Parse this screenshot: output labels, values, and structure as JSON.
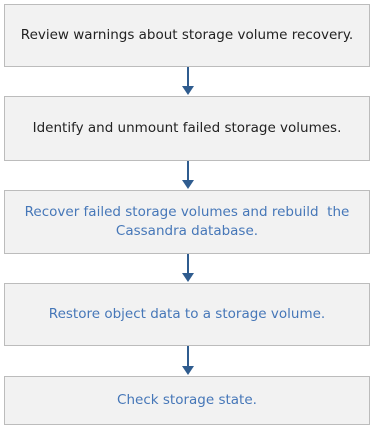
{
  "steps": [
    {
      "lines": [
        "Review warnings about storage volume recovery."
      ]
    },
    {
      "lines": [
        "Identify and unmount failed storage volumes."
      ]
    },
    {
      "lines": [
        "Recover failed storage volumes and rebuild  the",
        "Cassandra database."
      ]
    },
    {
      "lines": [
        "Restore object data to a storage volume."
      ]
    },
    {
      "lines": [
        "Check storage state."
      ]
    }
  ]
}
